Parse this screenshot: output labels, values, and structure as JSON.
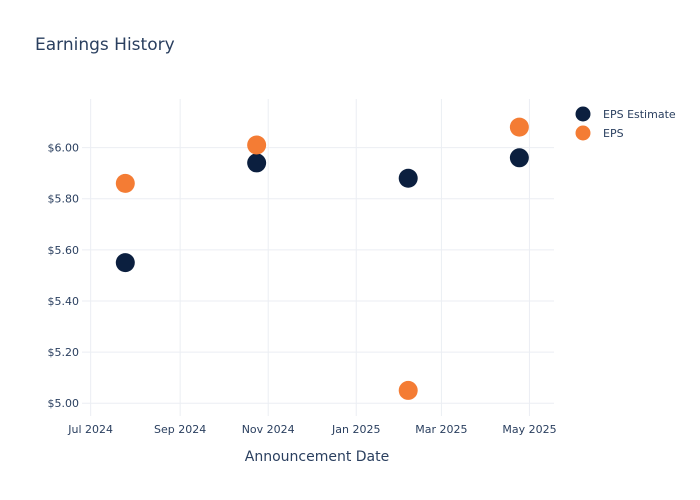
{
  "chart_data": {
    "type": "scatter",
    "title": "Earnings History",
    "xlabel": "Announcement Date",
    "ylabel": "",
    "x_ticks": [
      "Jul 2024",
      "Sep 2024",
      "Nov 2024",
      "Jan 2025",
      "Mar 2025",
      "May 2025"
    ],
    "y_ticks": [
      "$5.00",
      "$5.20",
      "$5.40",
      "$5.60",
      "$5.80",
      "$6.00"
    ],
    "ylim": [
      4.95,
      6.19
    ],
    "xlim": [
      "2024-06-25",
      "2025-05-18"
    ],
    "grid": true,
    "legend_position": "top-right",
    "series": [
      {
        "name": "EPS Estimate",
        "color": "#0b1f3f",
        "points": [
          {
            "x": "2024-07-25",
            "y": 5.55
          },
          {
            "x": "2024-10-24",
            "y": 5.94
          },
          {
            "x": "2025-02-06",
            "y": 5.88
          },
          {
            "x": "2025-04-24",
            "y": 5.96
          }
        ]
      },
      {
        "name": "EPS",
        "color": "#f47c34",
        "points": [
          {
            "x": "2024-07-25",
            "y": 5.86
          },
          {
            "x": "2024-10-24",
            "y": 6.01
          },
          {
            "x": "2025-02-06",
            "y": 5.05
          },
          {
            "x": "2025-04-24",
            "y": 6.08
          }
        ]
      }
    ]
  }
}
